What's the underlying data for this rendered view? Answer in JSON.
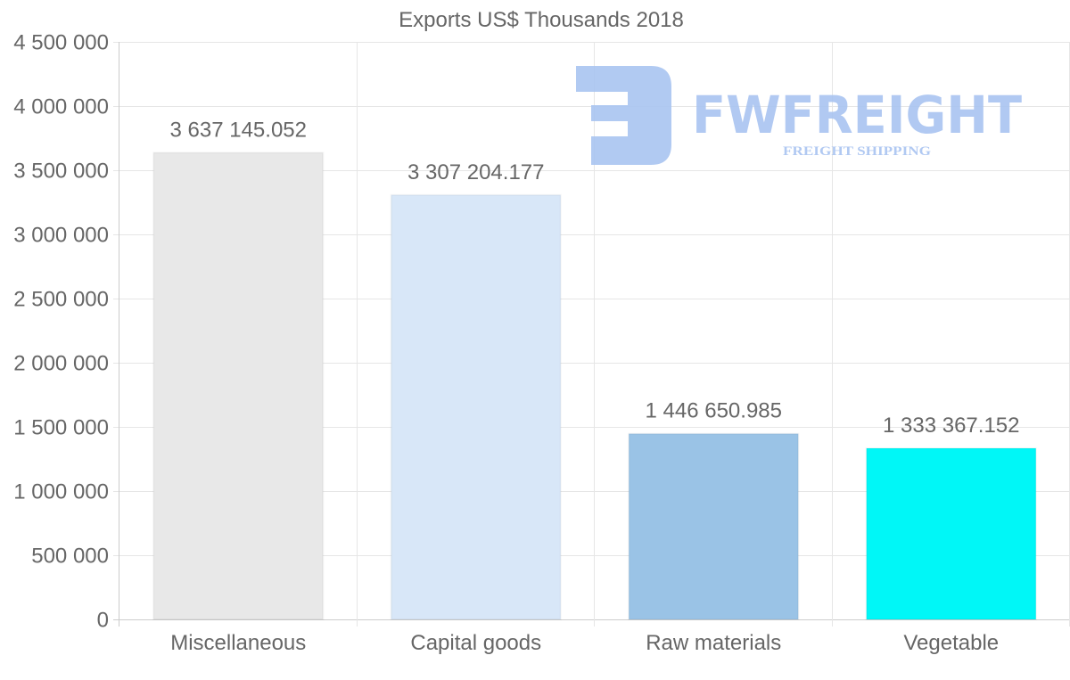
{
  "watermark": {
    "name": "FWFREIGHT",
    "tagline": "FREIGHT SHIPPING",
    "color": "#a9c4f1"
  },
  "chart_data": {
    "type": "bar",
    "title": "Exports US$ Thousands 2018",
    "categories": [
      "Miscellaneous",
      "Capital goods",
      "Raw materials",
      "Vegetable"
    ],
    "values": [
      3637145.052,
      3307204.177,
      1446650.985,
      1333367.152
    ],
    "value_labels": [
      "3 637 145.052",
      "3 307 204.177",
      "1 446 650.985",
      "1 333 367.152"
    ],
    "colors": [
      "#e8e8e8",
      "#d8e7f8",
      "#9ac3e6",
      "#00f7f7"
    ],
    "ylim": [
      0,
      4500000
    ],
    "yticks": [
      0,
      500000,
      1000000,
      1500000,
      2000000,
      2500000,
      3000000,
      3500000,
      4000000,
      4500000
    ],
    "ytick_labels": [
      "0",
      "500 000",
      "1 000 000",
      "1 500 000",
      "2 000 000",
      "2 500 000",
      "3 000 000",
      "3 500 000",
      "4 000 000",
      "4 500 000"
    ],
    "xlabel": "",
    "ylabel": "",
    "grid": true,
    "legend": "none"
  }
}
